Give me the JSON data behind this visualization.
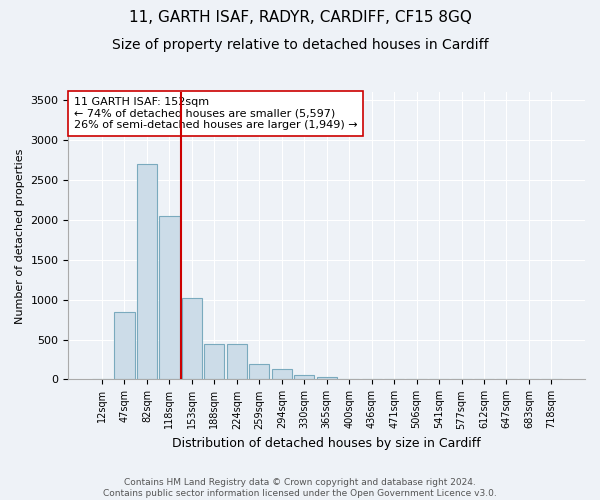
{
  "title": "11, GARTH ISAF, RADYR, CARDIFF, CF15 8GQ",
  "subtitle": "Size of property relative to detached houses in Cardiff",
  "xlabel": "Distribution of detached houses by size in Cardiff",
  "ylabel": "Number of detached properties",
  "footnote": "Contains HM Land Registry data © Crown copyright and database right 2024.\nContains public sector information licensed under the Open Government Licence v3.0.",
  "bar_labels": [
    "12sqm",
    "47sqm",
    "82sqm",
    "118sqm",
    "153sqm",
    "188sqm",
    "224sqm",
    "259sqm",
    "294sqm",
    "330sqm",
    "365sqm",
    "400sqm",
    "436sqm",
    "471sqm",
    "506sqm",
    "541sqm",
    "577sqm",
    "612sqm",
    "647sqm",
    "683sqm",
    "718sqm"
  ],
  "bar_heights": [
    5,
    850,
    2700,
    2050,
    1020,
    450,
    450,
    200,
    130,
    50,
    30,
    5,
    3,
    2,
    1,
    1,
    1,
    0,
    0,
    0,
    0
  ],
  "bar_color": "#ccdce8",
  "bar_edge_color": "#7aaabe",
  "vline_x_index": 4,
  "vline_color": "#cc0000",
  "annotation_text": "11 GARTH ISAF: 152sqm\n← 74% of detached houses are smaller (5,597)\n26% of semi-detached houses are larger (1,949) →",
  "annotation_box_color": "#ffffff",
  "annotation_box_edge_color": "#cc0000",
  "ylim": [
    0,
    3600
  ],
  "yticks": [
    0,
    500,
    1000,
    1500,
    2000,
    2500,
    3000,
    3500
  ],
  "background_color": "#eef2f7",
  "grid_color": "#ffffff",
  "title_fontsize": 11,
  "subtitle_fontsize": 10,
  "xlabel_fontsize": 9,
  "ylabel_fontsize": 8
}
